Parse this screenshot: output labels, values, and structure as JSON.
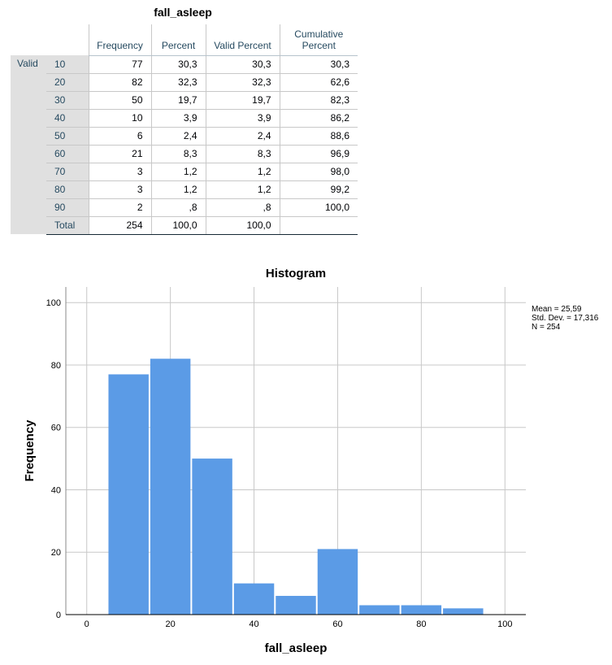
{
  "table": {
    "title": "fall_asleep",
    "headers": [
      "Frequency",
      "Percent",
      "Valid Percent",
      "Cumulative Percent"
    ],
    "group_label": "Valid",
    "rows": [
      {
        "label": "10",
        "frequency": "77",
        "percent": "30,3",
        "valid_percent": "30,3",
        "cumulative_percent": "30,3"
      },
      {
        "label": "20",
        "frequency": "82",
        "percent": "32,3",
        "valid_percent": "32,3",
        "cumulative_percent": "62,6"
      },
      {
        "label": "30",
        "frequency": "50",
        "percent": "19,7",
        "valid_percent": "19,7",
        "cumulative_percent": "82,3"
      },
      {
        "label": "40",
        "frequency": "10",
        "percent": "3,9",
        "valid_percent": "3,9",
        "cumulative_percent": "86,2"
      },
      {
        "label": "50",
        "frequency": "6",
        "percent": "2,4",
        "valid_percent": "2,4",
        "cumulative_percent": "88,6"
      },
      {
        "label": "60",
        "frequency": "21",
        "percent": "8,3",
        "valid_percent": "8,3",
        "cumulative_percent": "96,9"
      },
      {
        "label": "70",
        "frequency": "3",
        "percent": "1,2",
        "valid_percent": "1,2",
        "cumulative_percent": "98,0"
      },
      {
        "label": "80",
        "frequency": "3",
        "percent": "1,2",
        "valid_percent": "1,2",
        "cumulative_percent": "99,2"
      },
      {
        "label": "90",
        "frequency": "2",
        "percent": ",8",
        "valid_percent": ",8",
        "cumulative_percent": "100,0"
      },
      {
        "label": "Total",
        "frequency": "254",
        "percent": "100,0",
        "valid_percent": "100,0",
        "cumulative_percent": ""
      }
    ]
  },
  "chart_data": {
    "type": "bar",
    "title": "Histogram",
    "xlabel": "fall_asleep",
    "ylabel": "Frequency",
    "bins": [
      {
        "from": 5,
        "to": 15,
        "count": 77
      },
      {
        "from": 15,
        "to": 25,
        "count": 82
      },
      {
        "from": 25,
        "to": 35,
        "count": 50
      },
      {
        "from": 35,
        "to": 45,
        "count": 10
      },
      {
        "from": 45,
        "to": 55,
        "count": 6
      },
      {
        "from": 55,
        "to": 65,
        "count": 21
      },
      {
        "from": 65,
        "to": 75,
        "count": 3
      },
      {
        "from": 75,
        "to": 85,
        "count": 3
      },
      {
        "from": 85,
        "to": 95,
        "count": 2
      }
    ],
    "xlim": [
      -5,
      105
    ],
    "ylim": [
      0,
      105
    ],
    "xticks": [
      0,
      20,
      40,
      60,
      80,
      100
    ],
    "yticks": [
      0,
      20,
      40,
      60,
      80,
      100
    ],
    "xgrid": [
      0,
      20,
      40,
      60,
      80,
      100
    ],
    "ygrid": [
      20,
      40,
      60,
      80,
      100
    ],
    "grid": true,
    "legend_position": "right",
    "stats": [
      "Mean = 25,59",
      "Std. Dev. = 17,316",
      "N = 254"
    ],
    "bar_color": "#5b9be6",
    "grid_color": "#c8c8c8"
  }
}
